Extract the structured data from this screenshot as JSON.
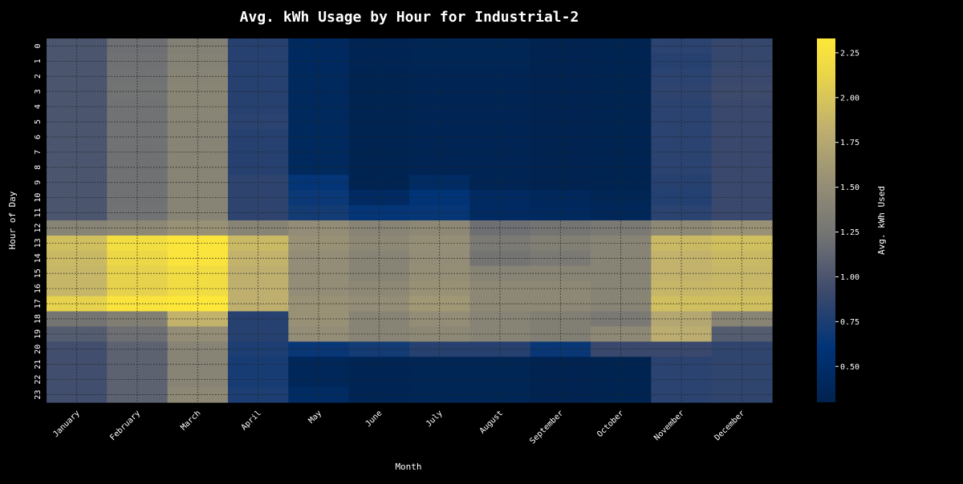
{
  "chart_data": {
    "type": "heatmap",
    "title": "Avg. kWh Usage by Hour for Industrial-2",
    "xlabel": "Month",
    "ylabel": "Hour of Day",
    "colorbar_label": "Avg. kWh Used",
    "colormap": "cividis",
    "vmin": 0.3,
    "vmax": 2.33,
    "colorbar_ticks": [
      "0.50",
      "0.75",
      "1.00",
      "1.25",
      "1.50",
      "1.75",
      "2.00",
      "2.25"
    ],
    "x": [
      "January",
      "February",
      "March",
      "April",
      "May",
      "June",
      "July",
      "August",
      "September",
      "October",
      "November",
      "December"
    ],
    "y": [
      "0",
      "1",
      "2",
      "3",
      "4",
      "5",
      "6",
      "7",
      "8",
      "9",
      "10",
      "11",
      "12",
      "13",
      "14",
      "15",
      "16",
      "17",
      "18",
      "19",
      "20",
      "21",
      "22",
      "23"
    ],
    "grid": "dotted",
    "values": [
      [
        1.0,
        1.2,
        1.36,
        0.8,
        0.42,
        0.34,
        0.36,
        0.36,
        0.32,
        0.33,
        0.82,
        0.88
      ],
      [
        1.0,
        1.21,
        1.38,
        0.8,
        0.42,
        0.34,
        0.36,
        0.36,
        0.32,
        0.33,
        0.8,
        0.88
      ],
      [
        1.0,
        1.22,
        1.4,
        0.8,
        0.41,
        0.33,
        0.35,
        0.35,
        0.32,
        0.33,
        0.82,
        0.9
      ],
      [
        1.0,
        1.23,
        1.42,
        0.8,
        0.41,
        0.33,
        0.35,
        0.35,
        0.32,
        0.33,
        0.84,
        0.92
      ],
      [
        1.0,
        1.22,
        1.42,
        0.8,
        0.41,
        0.33,
        0.35,
        0.35,
        0.32,
        0.33,
        0.82,
        0.9
      ],
      [
        1.0,
        1.22,
        1.41,
        0.82,
        0.41,
        0.33,
        0.35,
        0.35,
        0.32,
        0.33,
        0.82,
        0.9
      ],
      [
        1.0,
        1.22,
        1.4,
        0.8,
        0.41,
        0.33,
        0.35,
        0.35,
        0.32,
        0.33,
        0.82,
        0.9
      ],
      [
        1.0,
        1.21,
        1.4,
        0.8,
        0.41,
        0.33,
        0.35,
        0.35,
        0.32,
        0.33,
        0.82,
        0.9
      ],
      [
        1.0,
        1.21,
        1.4,
        0.8,
        0.41,
        0.33,
        0.35,
        0.35,
        0.32,
        0.33,
        0.82,
        0.9
      ],
      [
        1.0,
        1.21,
        1.4,
        0.84,
        0.62,
        0.33,
        0.45,
        0.35,
        0.32,
        0.33,
        0.8,
        0.9
      ],
      [
        1.0,
        1.21,
        1.4,
        0.84,
        0.66,
        0.44,
        0.6,
        0.44,
        0.4,
        0.36,
        0.78,
        0.9
      ],
      [
        1.0,
        1.22,
        1.4,
        0.84,
        0.7,
        0.62,
        0.64,
        0.44,
        0.42,
        0.38,
        0.82,
        0.9
      ],
      [
        1.4,
        1.45,
        1.55,
        1.4,
        1.5,
        1.4,
        1.45,
        1.2,
        1.25,
        1.3,
        1.45,
        1.55
      ],
      [
        1.95,
        2.22,
        2.3,
        1.9,
        1.55,
        1.45,
        1.52,
        1.3,
        1.35,
        1.4,
        1.9,
        1.95
      ],
      [
        1.9,
        2.15,
        2.28,
        1.85,
        1.5,
        1.4,
        1.5,
        1.25,
        1.3,
        1.4,
        1.85,
        1.9
      ],
      [
        1.88,
        2.1,
        2.2,
        1.82,
        1.5,
        1.4,
        1.52,
        1.4,
        1.4,
        1.4,
        1.85,
        1.88
      ],
      [
        1.88,
        2.1,
        2.2,
        1.82,
        1.5,
        1.45,
        1.55,
        1.45,
        1.45,
        1.4,
        1.88,
        1.9
      ],
      [
        2.1,
        2.28,
        2.32,
        1.82,
        1.55,
        1.5,
        1.6,
        1.45,
        1.45,
        1.4,
        1.95,
        1.95
      ],
      [
        1.25,
        1.35,
        1.85,
        0.8,
        1.55,
        1.4,
        1.5,
        1.4,
        1.35,
        1.3,
        1.75,
        1.4
      ],
      [
        1.05,
        1.2,
        1.5,
        0.8,
        1.5,
        1.4,
        1.45,
        1.4,
        1.35,
        1.45,
        1.8,
        1.05
      ],
      [
        0.95,
        1.1,
        1.4,
        0.75,
        0.65,
        0.7,
        0.8,
        0.8,
        0.65,
        0.9,
        0.9,
        0.85
      ],
      [
        0.95,
        1.1,
        1.4,
        0.72,
        0.38,
        0.34,
        0.36,
        0.36,
        0.32,
        0.33,
        0.82,
        0.85
      ],
      [
        0.95,
        1.1,
        1.4,
        0.72,
        0.38,
        0.34,
        0.36,
        0.36,
        0.32,
        0.33,
        0.82,
        0.85
      ],
      [
        0.95,
        1.1,
        1.45,
        0.75,
        0.45,
        0.34,
        0.36,
        0.36,
        0.32,
        0.33,
        0.82,
        0.85
      ]
    ]
  }
}
